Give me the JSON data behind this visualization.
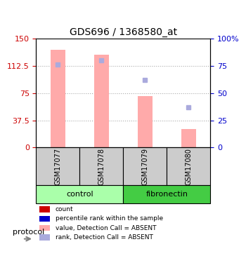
{
  "title": "GDS696 / 1368580_at",
  "samples": [
    "GSM17077",
    "GSM17078",
    "GSM17079",
    "GSM17080"
  ],
  "groups": [
    "control",
    "control",
    "fibronectin",
    "fibronectin"
  ],
  "bar_values": [
    135,
    128,
    71,
    26
  ],
  "rank_values": [
    76,
    80,
    62,
    37
  ],
  "bar_color": "#ffaaaa",
  "rank_color": "#aaaadd",
  "count_color": "#cc0000",
  "prank_color": "#0000cc",
  "ylim_left": [
    0,
    150
  ],
  "ylim_right": [
    0,
    100
  ],
  "yticks_left": [
    0,
    37.5,
    75,
    112.5,
    150
  ],
  "yticks_right": [
    0,
    25,
    50,
    75,
    100
  ],
  "ytick_labels_left": [
    "0",
    "37.5",
    "75",
    "112.5",
    "150"
  ],
  "ytick_labels_right": [
    "0",
    "25",
    "50",
    "75",
    "100%"
  ],
  "group_colors": {
    "control": "#aaffaa",
    "fibronectin": "#44cc44"
  },
  "grid_color": "#aaaaaa",
  "sample_bg_color": "#cccccc",
  "legend_items": [
    {
      "color": "#cc0000",
      "label": "count"
    },
    {
      "color": "#0000cc",
      "label": "percentile rank within the sample"
    },
    {
      "color": "#ffaaaa",
      "label": "value, Detection Call = ABSENT"
    },
    {
      "color": "#aaaadd",
      "label": "rank, Detection Call = ABSENT"
    }
  ],
  "protocol_label": "protocol"
}
